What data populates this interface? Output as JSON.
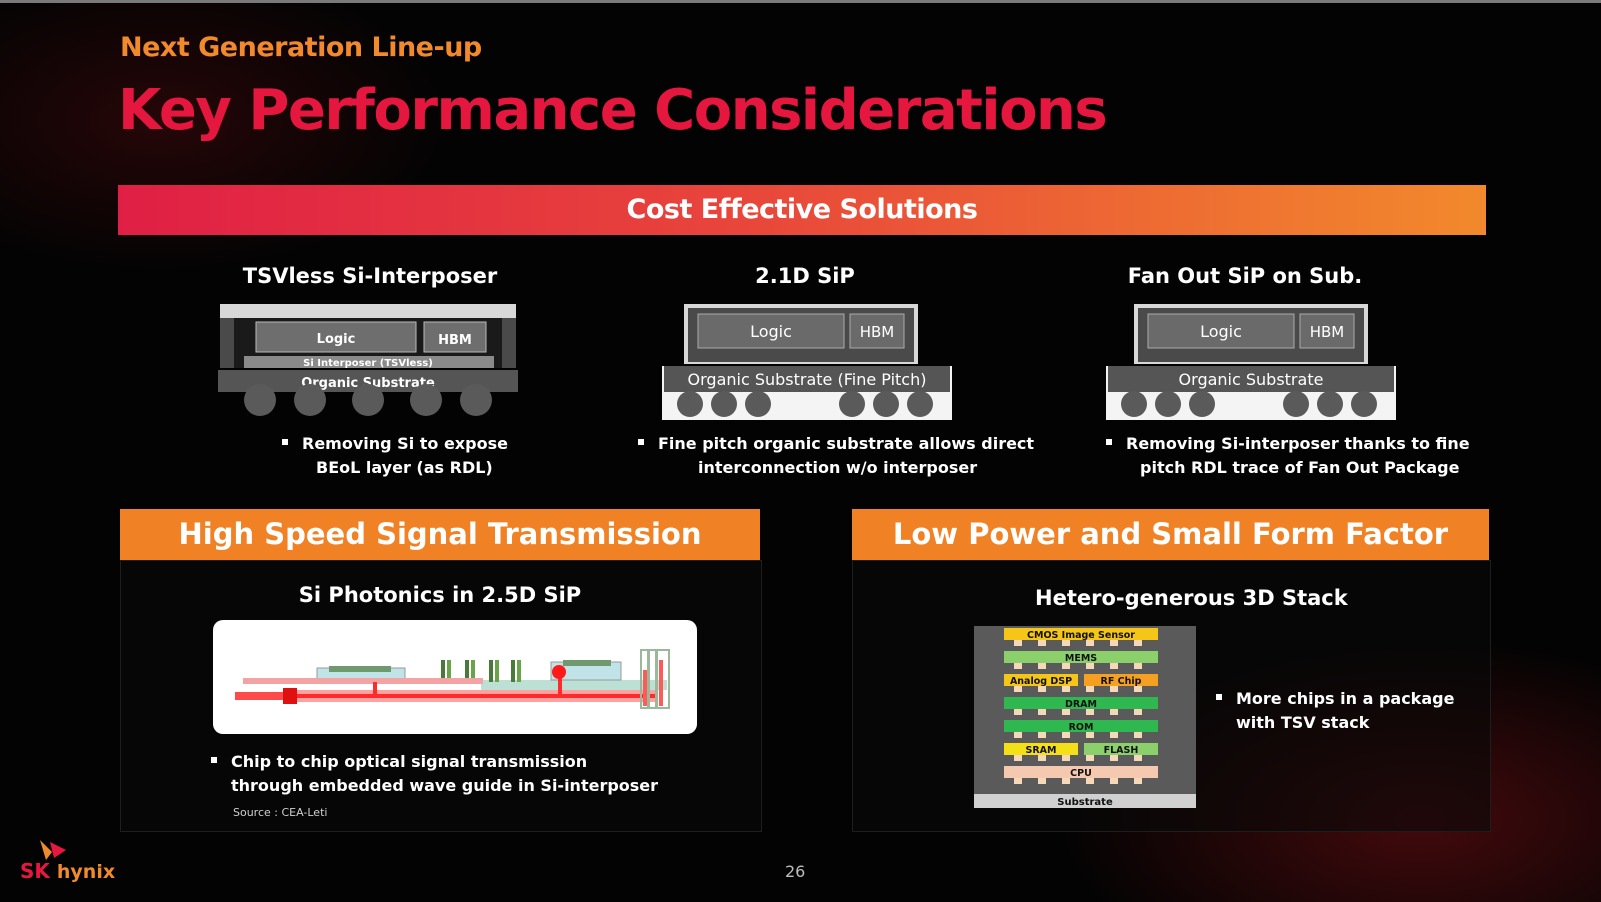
{
  "header": {
    "subtitle": "Next Generation Line-up",
    "title": "Key Performance Considerations"
  },
  "cost_section": {
    "banner": "Cost Effective Solutions",
    "columns": [
      {
        "heading": "TSVless Si-Interposer",
        "diagram": {
          "logic": "Logic",
          "hbm": "HBM",
          "interposer": "Si Interposer (TSVless)",
          "substrate": "Organic Substrate"
        },
        "bullet_line1": "Removing Si to expose",
        "bullet_line2": "BEoL layer (as RDL)"
      },
      {
        "heading": "2.1D SiP",
        "diagram": {
          "logic": "Logic",
          "hbm": "HBM",
          "substrate": "Organic Substrate (Fine Pitch)"
        },
        "bullet_line1": "Fine pitch organic substrate allows direct",
        "bullet_line2": "interconnection w/o interposer"
      },
      {
        "heading": "Fan Out SiP on Sub.",
        "diagram": {
          "logic": "Logic",
          "hbm": "HBM",
          "substrate": "Organic Substrate"
        },
        "bullet_line1": "Removing Si-interposer thanks to fine",
        "bullet_line2": "pitch RDL trace of Fan Out Package"
      }
    ]
  },
  "high_speed_section": {
    "banner": "High Speed Signal Transmission",
    "heading": "Si Photonics in 2.5D SiP",
    "bullet_line1": "Chip to chip optical signal transmission",
    "bullet_line2": "through embedded wave guide in Si-interposer",
    "source": "Source : CEA-Leti"
  },
  "low_power_section": {
    "banner": "Low Power and Small Form Factor",
    "heading": "Hetero-generous 3D Stack",
    "stack_labels": {
      "cmos": "CMOS Image Sensor",
      "mems": "MEMS",
      "analog_dsp": "Analog DSP",
      "rf_chip": "RF Chip",
      "dram": "DRAM",
      "rom": "ROM",
      "sram": "SRAM",
      "flash": "FLASH",
      "cpu": "CPU",
      "substrate": "Substrate"
    },
    "bullet_line1": "More chips in a package",
    "bullet_line2": "with TSV stack"
  },
  "footer": {
    "page_number": "26",
    "logo_sk": "SK",
    "logo_hynix": "hynix"
  },
  "colors": {
    "title_red": "#e5173f",
    "subtitle_orange": "#f08a2c",
    "banner_orange": "#f08225"
  }
}
